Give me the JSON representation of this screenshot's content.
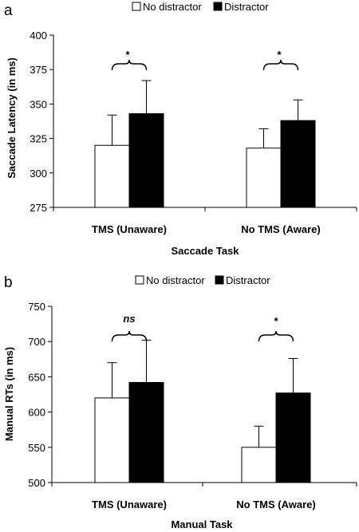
{
  "chart_data": [
    {
      "panel_label": "a",
      "type": "bar",
      "legend": [
        "No distractor",
        "Distractor"
      ],
      "legend_placement": "top-right",
      "categories": [
        "TMS (Unaware)",
        "No TMS (Aware)"
      ],
      "series": [
        {
          "name": "No distractor",
          "color": "#ffffff",
          "values": [
            320,
            318
          ],
          "errors": [
            22,
            14
          ]
        },
        {
          "name": "Distractor",
          "color": "#000000",
          "values": [
            343,
            338
          ],
          "errors": [
            24,
            15
          ]
        }
      ],
      "ylim": [
        275,
        400
      ],
      "yticks": [
        "275",
        "300",
        "325",
        "350",
        "375",
        "400"
      ],
      "ylabel": "Saccade Latency (in ms)",
      "xlabel": "Saccade Task",
      "significance": [
        "*",
        "*"
      ],
      "grid": false
    },
    {
      "panel_label": "b",
      "type": "bar",
      "legend": [
        "No distractor",
        "Distractor"
      ],
      "legend_placement": "top-right",
      "categories": [
        "TMS (Unaware)",
        "No TMS (Aware)"
      ],
      "series": [
        {
          "name": "No distractor",
          "color": "#ffffff",
          "values": [
            620,
            550
          ],
          "errors": [
            50,
            30
          ]
        },
        {
          "name": "Distractor",
          "color": "#000000",
          "values": [
            642,
            627
          ],
          "errors": [
            60,
            49
          ]
        }
      ],
      "ylim": [
        500,
        750
      ],
      "yticks": [
        "500",
        "550",
        "600",
        "650",
        "700",
        "750"
      ],
      "ylabel": "Manual RTs (in ms)",
      "xlabel": "Manual Task",
      "significance": [
        "ns",
        "*"
      ],
      "grid": false
    }
  ]
}
